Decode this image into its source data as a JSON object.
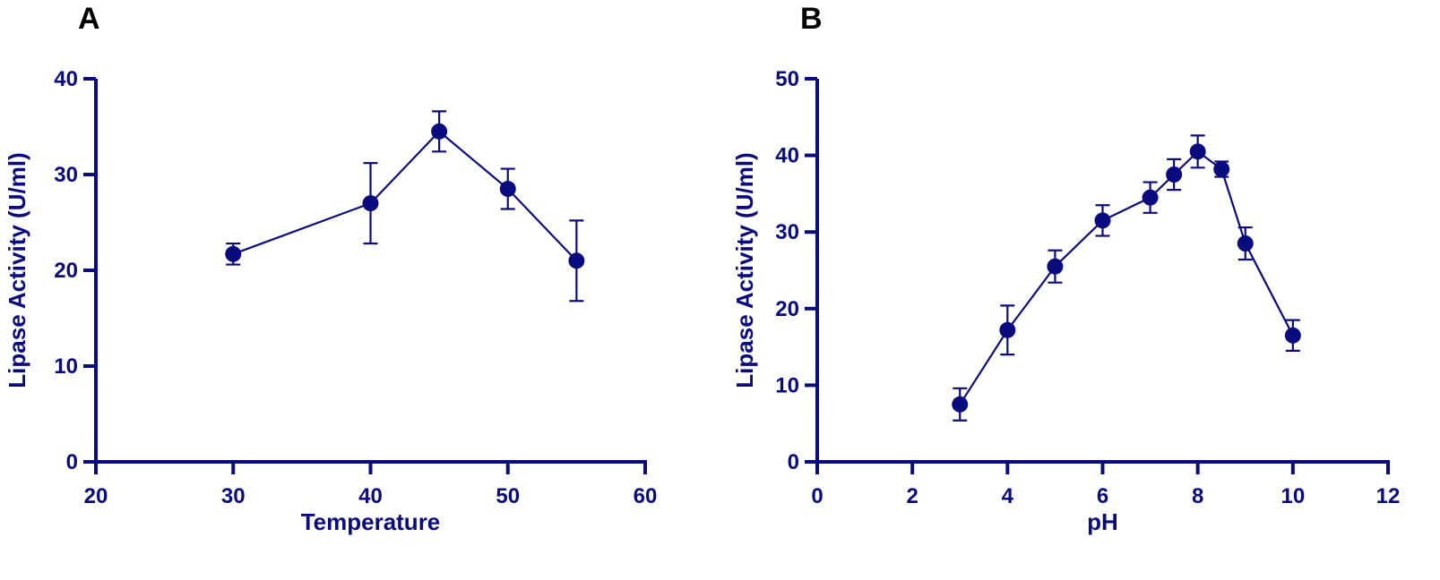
{
  "colors": {
    "series": "#0b0b80",
    "panel_letter": "#000000"
  },
  "chart_data": [
    {
      "type": "line",
      "panel": "A",
      "title": "",
      "xlabel": "Temperature",
      "ylabel": "Lipase Activity (U/ml)",
      "xlim": [
        20,
        60
      ],
      "ylim": [
        0,
        40
      ],
      "xticks": [
        20,
        30,
        40,
        50,
        60
      ],
      "yticks": [
        0,
        10,
        20,
        30,
        40
      ],
      "grid": false,
      "legend": null,
      "x": [
        30,
        40,
        45,
        50,
        55
      ],
      "values": [
        21.7,
        27.0,
        34.5,
        28.5,
        21.0
      ],
      "error": [
        1.1,
        4.2,
        2.1,
        2.1,
        4.2
      ]
    },
    {
      "type": "line",
      "panel": "B",
      "title": "",
      "xlabel": "pH",
      "ylabel": "Lipase Activity (U/ml)",
      "xlim": [
        0,
        12
      ],
      "ylim": [
        0,
        50
      ],
      "xticks": [
        0,
        2,
        4,
        6,
        8,
        10,
        12
      ],
      "yticks": [
        0,
        10,
        20,
        30,
        40,
        50
      ],
      "grid": false,
      "legend": null,
      "x": [
        3,
        4,
        5,
        6,
        7,
        7.5,
        8,
        8.5,
        9,
        10
      ],
      "values": [
        7.5,
        17.2,
        25.5,
        31.5,
        34.5,
        37.5,
        40.5,
        38.2,
        28.5,
        16.5
      ],
      "error": [
        2.1,
        3.2,
        2.1,
        2.0,
        2.0,
        2.0,
        2.1,
        1.0,
        2.1,
        2.0
      ]
    }
  ]
}
